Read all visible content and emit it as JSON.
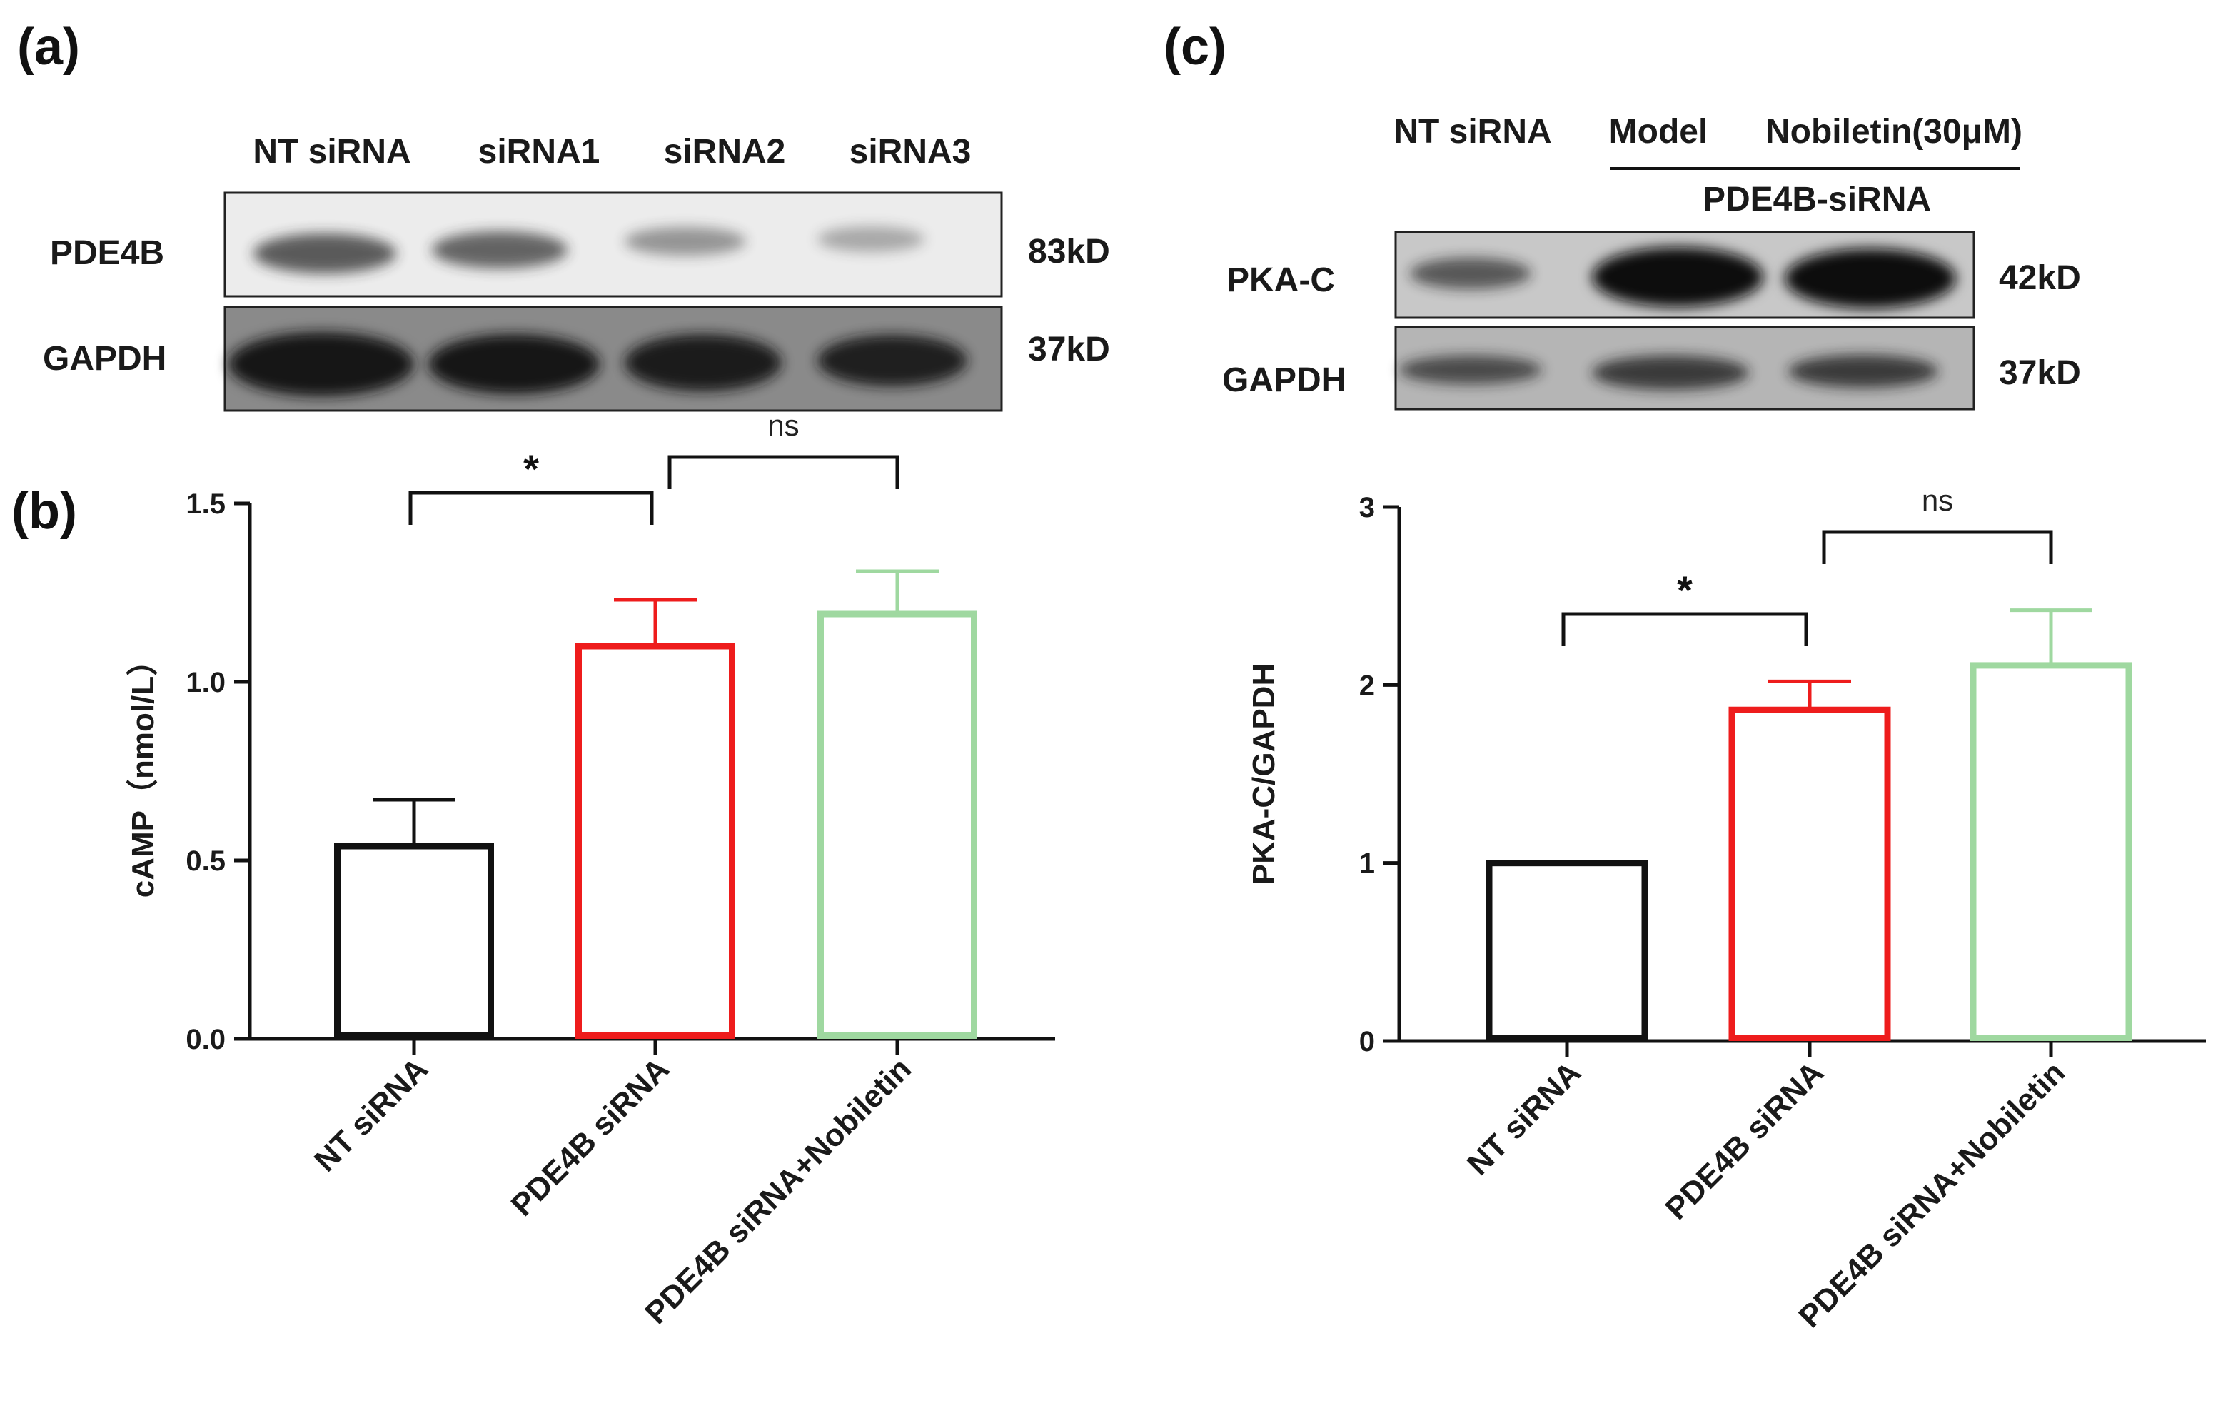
{
  "panels": {
    "a": "(a)",
    "b": "(b)",
    "c": "(c)"
  },
  "blot_a": {
    "lanes": [
      "NT siRNA",
      "siRNA1",
      "siRNA2",
      "siRNA3"
    ],
    "rows": [
      {
        "label": "PDE4B",
        "size": "83kD",
        "intensities": [
          0.75,
          0.7,
          0.45,
          0.35
        ]
      },
      {
        "label": "GAPDH",
        "size": "37kD",
        "intensities": [
          1.0,
          1.0,
          0.95,
          0.92
        ]
      }
    ]
  },
  "blot_c": {
    "lanes": [
      "NT siRNA",
      "Model",
      "Nobiletin(30μM)"
    ],
    "group_label": "PDE4B-siRNA",
    "rows": [
      {
        "label": "PKA-C",
        "size": "42kD",
        "intensities": [
          0.55,
          1.0,
          1.0
        ]
      },
      {
        "label": "GAPDH",
        "size": "37kD",
        "intensities": [
          0.6,
          0.7,
          0.7
        ]
      }
    ]
  },
  "colors": {
    "black": "#111111",
    "red": "#ee1c1c",
    "green": "#9fd8a0"
  },
  "chart_data": [
    {
      "type": "bar",
      "panel": "(b)",
      "categories": [
        "NT siRNA",
        "PDE4B siRNA",
        "PDE4B siRNA+Nobiletin"
      ],
      "values": [
        0.54,
        1.1,
        1.19
      ],
      "errors": [
        0.13,
        0.13,
        0.12
      ],
      "colors": [
        "#111111",
        "#ee1c1c",
        "#9fd8a0"
      ],
      "ylabel": "cAMP（nmol/L）",
      "ylim": [
        0,
        1.5
      ],
      "yticks": [
        "0.0",
        "0.5",
        "1.0",
        "1.5"
      ],
      "yticks_values": [
        0,
        0.5,
        1.0,
        1.5
      ],
      "significance": [
        {
          "from": 0,
          "to": 1,
          "label": "*"
        },
        {
          "from": 1,
          "to": 2,
          "label": "ns"
        }
      ]
    },
    {
      "type": "bar",
      "panel": "(c)",
      "categories": [
        "NT siRNA",
        "PDE4B siRNA",
        "PDE4B siRNA+Nobiletin"
      ],
      "values": [
        1.0,
        1.86,
        2.11
      ],
      "errors": [
        0.0,
        0.16,
        0.31
      ],
      "colors": [
        "#111111",
        "#ee1c1c",
        "#9fd8a0"
      ],
      "ylabel": "PKA-C/GAPDH",
      "ylim": [
        0,
        3
      ],
      "yticks": [
        "0",
        "1",
        "2",
        "3"
      ],
      "yticks_values": [
        0,
        1,
        2,
        3
      ],
      "significance": [
        {
          "from": 0,
          "to": 1,
          "label": "*"
        },
        {
          "from": 1,
          "to": 2,
          "label": "ns"
        }
      ]
    }
  ]
}
